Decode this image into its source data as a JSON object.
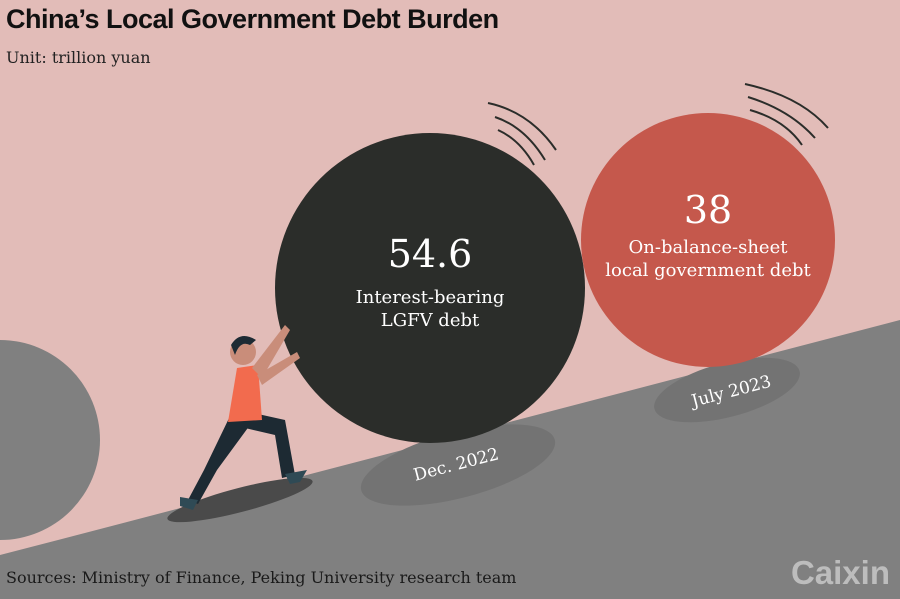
{
  "title": "China’s Local Government Debt Burden",
  "unit": "Unit: trillion yuan",
  "colors": {
    "background": "#e2bcb8",
    "ground": "#808080",
    "lgfv": "#2b2d2a",
    "local_gov": "#c5584c",
    "shirt": "#f26b4e",
    "pants": "#1d2a33"
  },
  "chart_data": {
    "type": "bubble",
    "title": "China’s Local Government Debt Burden",
    "unit": "trillion yuan",
    "items": [
      {
        "label": "Interest-bearing LGFV debt",
        "label_lines": [
          "Interest-bearing",
          "LGFV debt"
        ],
        "value": "54.6",
        "date": "Dec. 2022",
        "color": "#2b2d2a"
      },
      {
        "label": "On-balance-sheet local government debt",
        "label_lines": [
          "On-balance-sheet",
          "local government debt"
        ],
        "value": "38",
        "date": "July 2023",
        "color": "#c5584c"
      }
    ]
  },
  "sources": "Sources: Ministry of Finance, Peking University research team",
  "logo": "Caixin"
}
